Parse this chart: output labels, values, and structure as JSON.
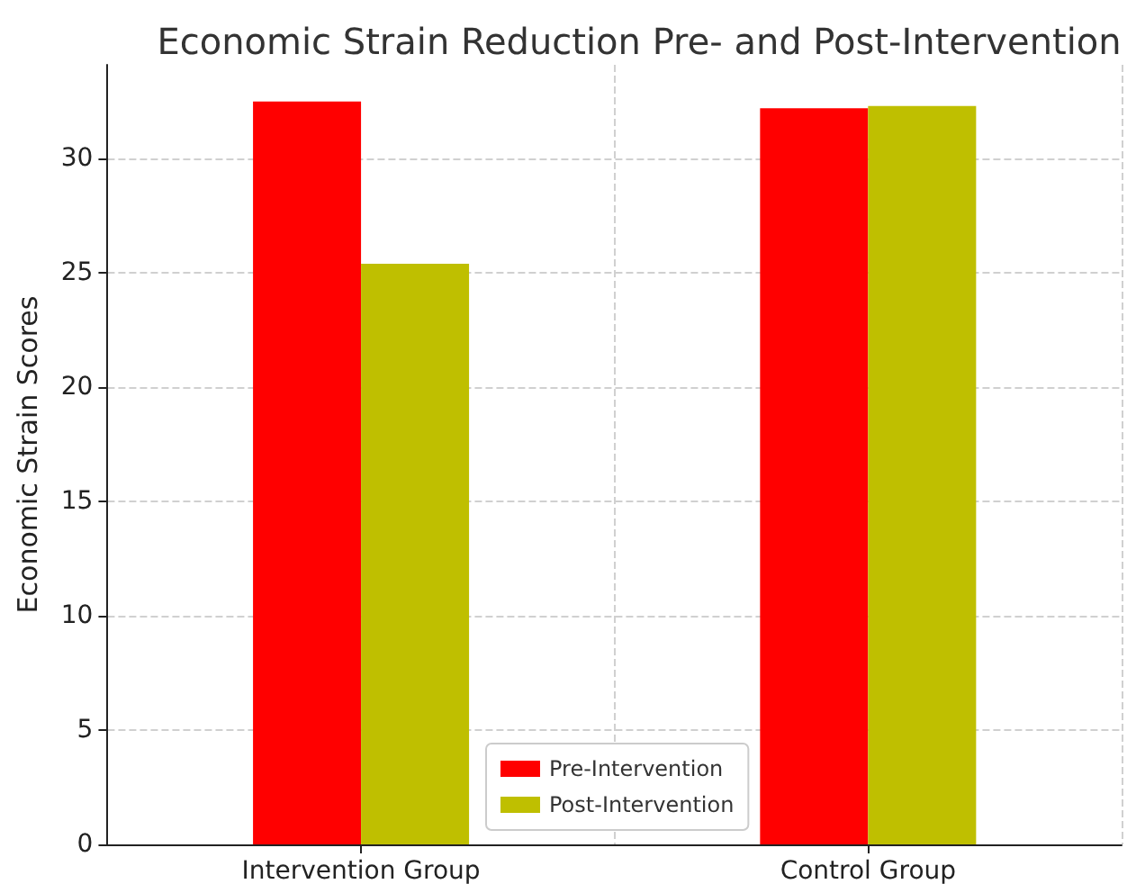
{
  "chart_data": {
    "type": "bar",
    "title": "Economic Strain Reduction Pre- and Post-Intervention",
    "ylabel": "Economic Strain Scores",
    "categories": [
      "Intervention Group",
      "Control Group"
    ],
    "series": [
      {
        "name": "Pre-Intervention",
        "color": "#ff0000",
        "values": [
          32.5,
          32.2
        ]
      },
      {
        "name": "Post-Intervention",
        "color": "#bfbf00",
        "values": [
          25.4,
          32.3
        ]
      }
    ],
    "ylim": [
      0,
      34.1
    ],
    "yticks": [
      0,
      5,
      10,
      15,
      20,
      25,
      30
    ],
    "grid": true,
    "legend": "bottom"
  }
}
